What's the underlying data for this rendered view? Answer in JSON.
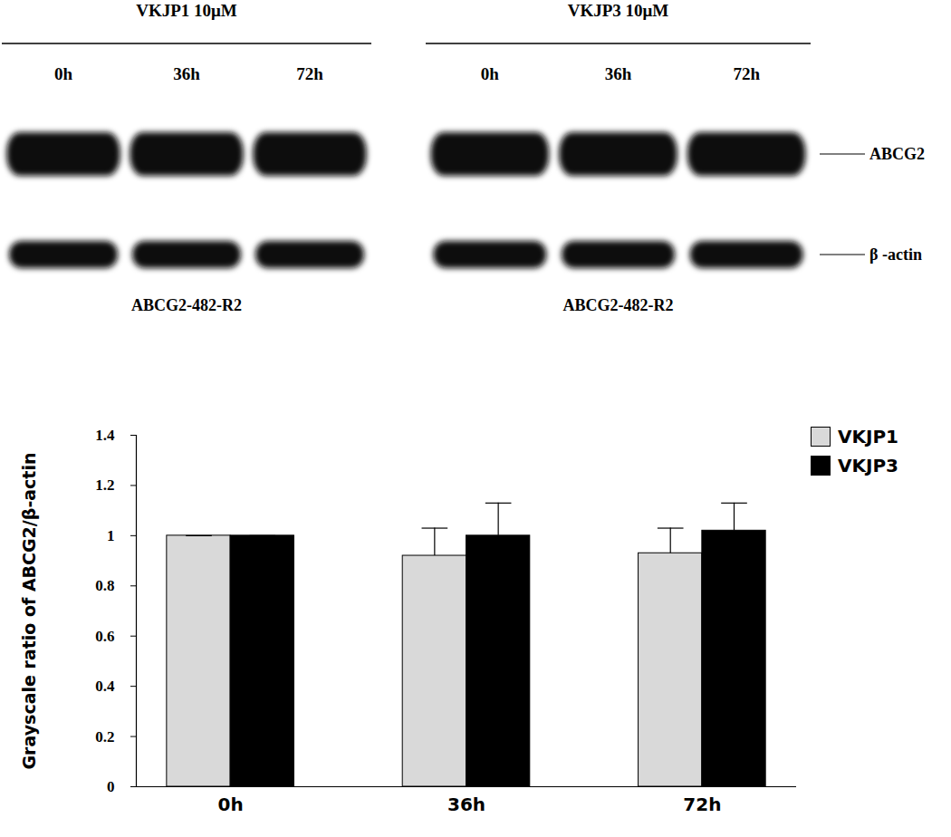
{
  "blot": {
    "panels": [
      {
        "title": "VKJP1 10μM",
        "lanes": [
          "0h",
          "36h",
          "72h"
        ],
        "cell_line": "ABCG2-482-R2"
      },
      {
        "title": "VKJP3 10μM",
        "lanes": [
          "0h",
          "36h",
          "72h"
        ],
        "cell_line": "ABCG2-482-R2"
      }
    ],
    "rows": [
      "ABCG2",
      "β -actin"
    ]
  },
  "chart_data": {
    "type": "bar",
    "categories": [
      "0h",
      "36h",
      "72h"
    ],
    "y_label": "Grayscale ratio of ABCG2/β-actin",
    "ylim": [
      0,
      1.4
    ],
    "yticks": [
      0,
      0.2,
      0.4,
      0.6,
      0.8,
      1,
      1.2,
      1.4
    ],
    "legend": "top-right",
    "series": [
      {
        "name": "VKJP1",
        "color": "#d9d9d9",
        "values": [
          1,
          0.92,
          0.93
        ],
        "errors": [
          0,
          0.11,
          0.1
        ]
      },
      {
        "name": "VKJP3",
        "color": "#000000",
        "values": [
          1,
          1.0,
          1.02
        ],
        "errors": [
          0,
          0.13,
          0.11
        ]
      }
    ]
  }
}
